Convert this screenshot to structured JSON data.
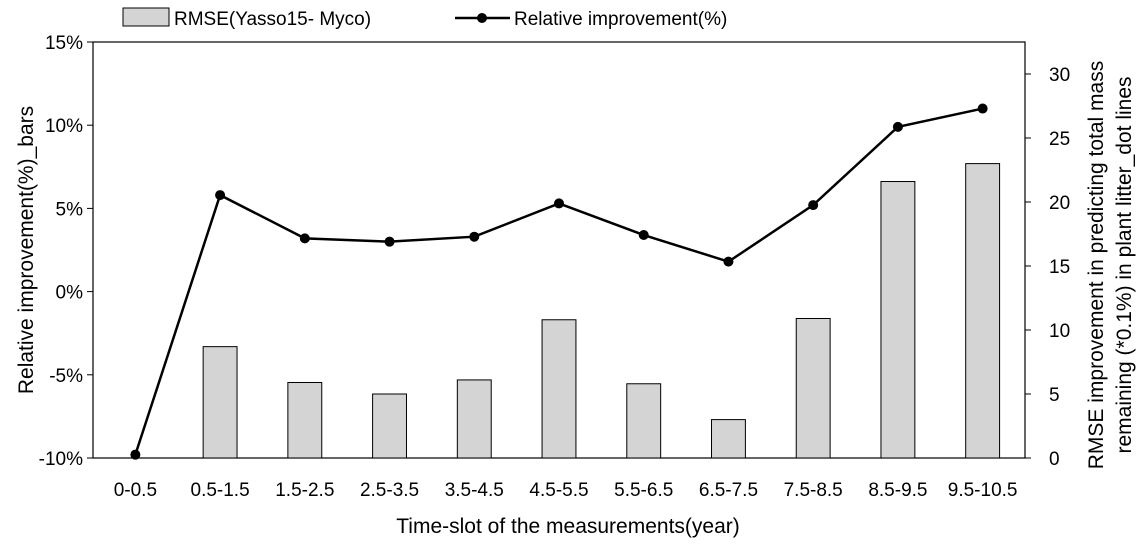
{
  "chart_data": {
    "type": "bar+line",
    "categories": [
      "0-0.5",
      "0.5-1.5",
      "1.5-2.5",
      "2.5-3.5",
      "3.5-4.5",
      "4.5-5.5",
      "5.5-6.5",
      "6.5-7.5",
      "7.5-8.5",
      "8.5-9.5",
      "9.5-10.5"
    ],
    "xlabel": "Time-slot of the measurements(year)",
    "ylabel_left": "Relative improvement(%)_bars",
    "ylabel_right_line1": "RMSE improvement in predicting total mass",
    "ylabel_right_line2": "remaining (*0.1%) in plant litter_dot lines",
    "left_axis": {
      "ylim": [
        -10,
        15
      ],
      "ticks": [
        "-10%",
        "-5%",
        "0%",
        "5%",
        "10%",
        "15%"
      ],
      "tick_values": [
        -10,
        -5,
        0,
        5,
        10,
        15
      ]
    },
    "right_axis": {
      "ylim": [
        0,
        32.5
      ],
      "ticks": [
        "0",
        "5",
        "10",
        "15",
        "20",
        "25",
        "30"
      ],
      "tick_values": [
        0,
        5,
        10,
        15,
        20,
        25,
        30
      ]
    },
    "series": [
      {
        "name": "RMSE(Yasso15- Myco)",
        "type": "bar",
        "axis": "right",
        "color": "#d4d4d4",
        "edge_color": "#000000",
        "values": [
          0,
          8.7,
          5.9,
          5.0,
          6.1,
          10.8,
          5.8,
          3.0,
          10.9,
          21.6,
          23.0
        ]
      },
      {
        "name": "Relative improvement(%)",
        "type": "line",
        "axis": "left",
        "color": "#000000",
        "marker": "circle",
        "values": [
          -9.8,
          5.8,
          3.2,
          3.0,
          3.3,
          5.3,
          3.4,
          1.8,
          5.2,
          9.9,
          11.0
        ]
      }
    ],
    "legend_position": "top",
    "grid": false
  }
}
